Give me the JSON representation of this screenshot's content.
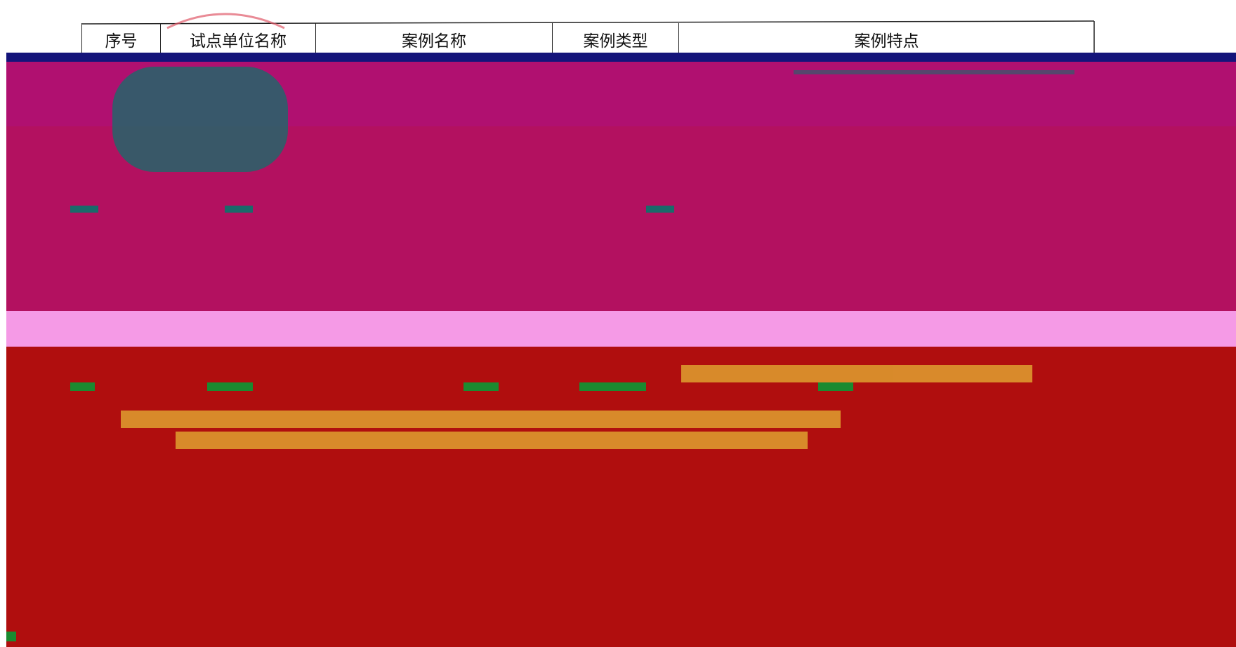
{
  "table": {
    "header": [
      "序号",
      "试点单位名称",
      "案例名称",
      "案例类型",
      "案例特点"
    ]
  }
}
